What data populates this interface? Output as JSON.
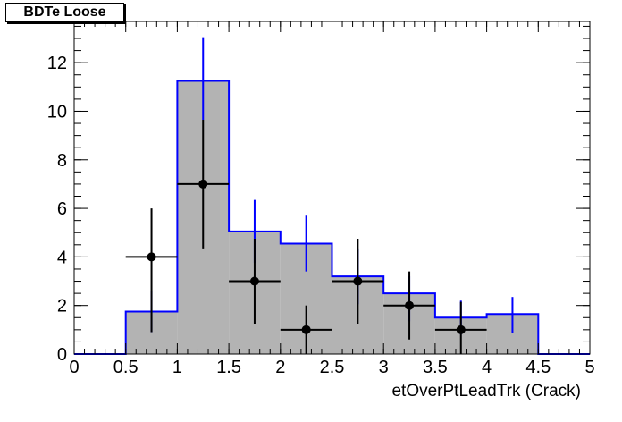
{
  "title": "BDTe Loose",
  "chart_data": {
    "type": "bar",
    "title": "BDTe Loose",
    "xlabel": "etOverPtLeadTrk (Crack)",
    "ylabel": "",
    "xlim": [
      0,
      5
    ],
    "ylim": [
      0,
      13.7
    ],
    "grid": false,
    "x_ticks": [
      "0",
      "0.5",
      "1",
      "1.5",
      "2",
      "2.5",
      "3",
      "3.5",
      "4",
      "4.5",
      "5"
    ],
    "y_ticks": [
      "0",
      "2",
      "4",
      "6",
      "8",
      "10",
      "12"
    ],
    "bin_edges": [
      0,
      0.5,
      1,
      1.5,
      2,
      2.5,
      3,
      3.5,
      4,
      4.5,
      5
    ],
    "series": [
      {
        "kind": "histogram",
        "values": [
          0,
          1.75,
          11.25,
          5.05,
          4.55,
          3.2,
          2.5,
          1.5,
          1.65,
          0
        ],
        "fill_color": "#b3b3b3",
        "line_color": "#0000ff"
      },
      {
        "kind": "errorbars",
        "color": "#0000ff",
        "x": [
          0.75,
          1.25,
          1.75,
          2.25,
          2.75,
          3.25,
          3.75,
          4.25
        ],
        "low": [
          0.9,
          9.65,
          3.75,
          3.4,
          2.05,
          1.35,
          0.8,
          0.85
        ],
        "high": [
          2.6,
          13.05,
          6.35,
          5.7,
          4.35,
          3.2,
          2.2,
          2.35
        ]
      },
      {
        "kind": "points",
        "color": "#000000",
        "x": [
          0.75,
          1.25,
          1.75,
          2.25,
          2.75,
          3.25,
          3.75
        ],
        "y": [
          4,
          7,
          3,
          1,
          3,
          2,
          1
        ],
        "xerr": 0.25,
        "yerr_low": [
          3.1,
          2.65,
          1.75,
          1.0,
          1.75,
          1.4,
          1.0
        ],
        "yerr_high": [
          2.0,
          2.65,
          1.75,
          1.0,
          1.75,
          1.4,
          1.15
        ]
      }
    ]
  }
}
